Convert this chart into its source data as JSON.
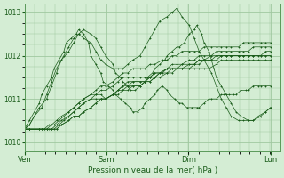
{
  "bg_color": "#d4edd4",
  "plot_bg_color": "#d4edd4",
  "grid_color": "#a0c8a0",
  "line_color": "#1a5c1a",
  "xlabel": "Pression niveau de la mer( hPa )",
  "ylim": [
    1009.8,
    1013.2
  ],
  "yticks": [
    1010,
    1011,
    1012,
    1013
  ],
  "xtick_labels": [
    "Ven",
    "Sam",
    "Dim",
    "Lun"
  ],
  "xtick_positions": [
    0,
    0.333,
    0.667,
    1.0
  ],
  "series": [
    {
      "x": [
        0.0,
        0.02,
        0.04,
        0.06,
        0.08,
        0.1,
        0.12,
        0.14,
        0.16,
        0.18,
        0.2,
        0.22,
        0.24,
        0.27,
        0.29,
        0.31,
        0.33,
        0.36,
        0.38,
        0.4,
        0.42,
        0.44,
        0.47,
        0.49,
        0.51,
        0.53,
        0.55,
        0.58,
        0.6,
        0.62,
        0.64,
        0.67,
        0.69,
        0.71,
        0.73,
        0.75,
        0.78,
        0.8,
        0.82,
        0.84,
        0.87,
        0.89,
        0.91,
        0.93,
        0.95,
        0.98,
        1.0
      ],
      "y": [
        1010.3,
        1010.3,
        1010.3,
        1010.3,
        1010.3,
        1010.4,
        1010.4,
        1010.5,
        1010.6,
        1010.7,
        1010.8,
        1010.9,
        1011.0,
        1011.1,
        1011.1,
        1011.1,
        1011.0,
        1011.1,
        1011.2,
        1011.3,
        1011.4,
        1011.4,
        1011.4,
        1011.4,
        1011.4,
        1011.5,
        1011.6,
        1011.7,
        1011.7,
        1011.7,
        1011.7,
        1011.7,
        1011.7,
        1011.7,
        1011.7,
        1011.7,
        1011.8,
        1011.9,
        1011.9,
        1011.9,
        1011.9,
        1011.9,
        1011.9,
        1011.9,
        1011.9,
        1011.9,
        1011.9
      ]
    },
    {
      "x": [
        0.0,
        0.02,
        0.04,
        0.06,
        0.08,
        0.1,
        0.12,
        0.14,
        0.16,
        0.18,
        0.2,
        0.22,
        0.24,
        0.27,
        0.29,
        0.31,
        0.33,
        0.36,
        0.38,
        0.4,
        0.42,
        0.44,
        0.47,
        0.49,
        0.51,
        0.53,
        0.55,
        0.58,
        0.6,
        0.62,
        0.64,
        0.67,
        0.69,
        0.71,
        0.73,
        0.75,
        0.78,
        0.8,
        0.82,
        0.84,
        0.87,
        0.89,
        0.91,
        0.93,
        0.95,
        0.98,
        1.0
      ],
      "y": [
        1010.3,
        1010.3,
        1010.3,
        1010.3,
        1010.3,
        1010.3,
        1010.3,
        1010.4,
        1010.5,
        1010.6,
        1010.7,
        1010.8,
        1010.9,
        1011.0,
        1011.0,
        1011.0,
        1011.0,
        1011.1,
        1011.2,
        1011.2,
        1011.3,
        1011.3,
        1011.3,
        1011.4,
        1011.5,
        1011.6,
        1011.6,
        1011.7,
        1011.7,
        1011.7,
        1011.8,
        1011.8,
        1011.8,
        1011.9,
        1011.9,
        1011.9,
        1011.9,
        1012.0,
        1012.0,
        1012.0,
        1012.0,
        1012.0,
        1012.0,
        1012.0,
        1012.0,
        1012.0,
        1012.0
      ]
    },
    {
      "x": [
        0.0,
        0.02,
        0.04,
        0.07,
        0.09,
        0.11,
        0.13,
        0.15,
        0.18,
        0.2,
        0.22,
        0.24,
        0.27,
        0.29,
        0.31,
        0.33,
        0.36,
        0.38,
        0.4,
        0.42,
        0.44,
        0.47,
        0.49,
        0.51,
        0.53,
        0.55,
        0.58,
        0.6,
        0.62,
        0.64,
        0.67,
        0.69,
        0.71,
        0.73,
        0.76,
        0.78,
        0.8,
        0.82,
        0.84,
        0.87,
        0.89,
        0.91,
        0.93,
        0.96,
        0.98,
        1.0
      ],
      "y": [
        1010.3,
        1010.3,
        1010.3,
        1010.3,
        1010.3,
        1010.3,
        1010.3,
        1010.4,
        1010.5,
        1010.6,
        1010.6,
        1010.7,
        1010.8,
        1010.9,
        1011.0,
        1011.0,
        1011.1,
        1011.1,
        1011.2,
        1011.2,
        1011.3,
        1011.3,
        1011.4,
        1011.4,
        1011.5,
        1011.5,
        1011.6,
        1011.6,
        1011.7,
        1011.7,
        1011.7,
        1011.8,
        1011.8,
        1011.9,
        1011.9,
        1012.0,
        1012.0,
        1012.0,
        1012.0,
        1012.0,
        1012.0,
        1012.0,
        1012.0,
        1012.0,
        1012.0,
        1012.0
      ]
    },
    {
      "x": [
        0.0,
        0.02,
        0.04,
        0.07,
        0.09,
        0.11,
        0.13,
        0.15,
        0.18,
        0.2,
        0.22,
        0.24,
        0.27,
        0.29,
        0.31,
        0.33,
        0.36,
        0.38,
        0.4,
        0.42,
        0.44,
        0.47,
        0.49,
        0.51,
        0.53,
        0.55,
        0.58,
        0.6,
        0.62,
        0.64,
        0.67,
        0.69,
        0.71,
        0.73,
        0.76,
        0.78,
        0.8,
        0.82,
        0.84,
        0.87,
        0.89,
        0.91,
        0.93,
        0.96,
        0.98,
        1.0
      ],
      "y": [
        1010.3,
        1010.3,
        1010.3,
        1010.3,
        1010.3,
        1010.3,
        1010.3,
        1010.4,
        1010.5,
        1010.6,
        1010.6,
        1010.7,
        1010.8,
        1010.9,
        1011.0,
        1011.0,
        1011.1,
        1011.2,
        1011.3,
        1011.3,
        1011.4,
        1011.4,
        1011.4,
        1011.5,
        1011.5,
        1011.6,
        1011.6,
        1011.7,
        1011.7,
        1011.7,
        1011.8,
        1011.8,
        1011.9,
        1011.9,
        1012.0,
        1012.0,
        1012.0,
        1012.0,
        1012.0,
        1012.0,
        1012.0,
        1012.0,
        1012.0,
        1012.0,
        1012.1,
        1012.1
      ]
    },
    {
      "x": [
        0.0,
        0.02,
        0.04,
        0.06,
        0.09,
        0.11,
        0.13,
        0.15,
        0.18,
        0.2,
        0.22,
        0.24,
        0.27,
        0.29,
        0.31,
        0.33,
        0.36,
        0.38,
        0.4,
        0.42,
        0.44,
        0.47,
        0.49,
        0.51,
        0.53,
        0.56,
        0.58,
        0.6,
        0.62,
        0.64,
        0.67,
        0.69,
        0.71,
        0.73,
        0.76,
        0.78,
        0.8,
        0.82,
        0.84,
        0.87,
        0.89,
        0.91,
        0.93,
        0.96,
        0.98,
        1.0
      ],
      "y": [
        1010.3,
        1010.3,
        1010.3,
        1010.3,
        1010.3,
        1010.3,
        1010.4,
        1010.5,
        1010.6,
        1010.7,
        1010.8,
        1010.9,
        1011.0,
        1011.1,
        1011.2,
        1011.2,
        1011.3,
        1011.4,
        1011.5,
        1011.5,
        1011.5,
        1011.5,
        1011.5,
        1011.5,
        1011.6,
        1011.6,
        1011.7,
        1011.8,
        1011.8,
        1011.8,
        1011.9,
        1011.9,
        1012.0,
        1012.0,
        1012.0,
        1012.1,
        1012.1,
        1012.1,
        1012.1,
        1012.1,
        1012.1,
        1012.1,
        1012.2,
        1012.2,
        1012.2,
        1012.2
      ]
    },
    {
      "x": [
        0.0,
        0.02,
        0.04,
        0.07,
        0.09,
        0.11,
        0.13,
        0.15,
        0.18,
        0.2,
        0.22,
        0.24,
        0.27,
        0.29,
        0.31,
        0.33,
        0.36,
        0.38,
        0.4,
        0.42,
        0.44,
        0.47,
        0.49,
        0.51,
        0.53,
        0.56,
        0.58,
        0.6,
        0.62,
        0.64,
        0.67,
        0.69,
        0.71,
        0.73,
        0.76,
        0.78,
        0.8,
        0.82,
        0.84,
        0.87,
        0.89,
        0.91,
        0.93,
        0.96,
        0.98,
        1.0
      ],
      "y": [
        1010.3,
        1010.3,
        1010.3,
        1010.3,
        1010.3,
        1010.4,
        1010.5,
        1010.6,
        1010.7,
        1010.8,
        1010.9,
        1011.0,
        1011.1,
        1011.2,
        1011.3,
        1011.3,
        1011.4,
        1011.5,
        1011.6,
        1011.6,
        1011.7,
        1011.7,
        1011.7,
        1011.8,
        1011.8,
        1011.9,
        1011.9,
        1012.0,
        1012.0,
        1012.1,
        1012.1,
        1012.1,
        1012.1,
        1012.2,
        1012.2,
        1012.2,
        1012.2,
        1012.2,
        1012.2,
        1012.2,
        1012.3,
        1012.3,
        1012.3,
        1012.3,
        1012.3,
        1012.3
      ]
    },
    {
      "x": [
        0.0,
        0.01,
        0.02,
        0.04,
        0.06,
        0.07,
        0.09,
        0.11,
        0.12,
        0.14,
        0.16,
        0.17,
        0.19,
        0.21,
        0.22,
        0.24,
        0.26,
        0.27,
        0.29,
        0.31,
        0.32,
        0.34,
        0.36,
        0.37,
        0.39,
        0.41,
        0.43,
        0.44,
        0.46,
        0.48,
        0.49,
        0.51,
        0.53,
        0.54,
        0.56,
        0.58,
        0.59,
        0.61,
        0.63,
        0.64,
        0.66,
        0.68,
        0.7,
        0.71,
        0.73,
        0.75,
        0.76,
        0.78,
        0.8,
        0.81,
        0.83,
        0.85,
        0.86,
        0.88,
        0.9,
        0.91,
        0.93,
        0.95,
        0.96,
        0.98,
        1.0
      ],
      "y": [
        1010.3,
        1010.4,
        1010.5,
        1010.7,
        1010.9,
        1011.1,
        1011.3,
        1011.5,
        1011.7,
        1011.9,
        1012.1,
        1012.3,
        1012.4,
        1012.5,
        1012.6,
        1012.5,
        1012.3,
        1012.0,
        1011.8,
        1011.6,
        1011.4,
        1011.3,
        1011.2,
        1011.1,
        1011.0,
        1010.9,
        1010.8,
        1010.7,
        1010.7,
        1010.8,
        1010.9,
        1011.0,
        1011.1,
        1011.2,
        1011.3,
        1011.2,
        1011.1,
        1011.0,
        1010.9,
        1010.9,
        1010.8,
        1010.8,
        1010.8,
        1010.8,
        1010.9,
        1011.0,
        1011.0,
        1011.0,
        1011.1,
        1011.1,
        1011.1,
        1011.1,
        1011.1,
        1011.2,
        1011.2,
        1011.2,
        1011.3,
        1011.3,
        1011.3,
        1011.3,
        1011.3
      ]
    },
    {
      "x": [
        0.0,
        0.02,
        0.04,
        0.06,
        0.09,
        0.11,
        0.13,
        0.15,
        0.18,
        0.2,
        0.22,
        0.24,
        0.27,
        0.29,
        0.31,
        0.33,
        0.36,
        0.37,
        0.39,
        0.4,
        0.42,
        0.43,
        0.45,
        0.47,
        0.49,
        0.5,
        0.52,
        0.53,
        0.55,
        0.57,
        0.58,
        0.6,
        0.62,
        0.63,
        0.65,
        0.67,
        0.69,
        0.7,
        0.72,
        0.73,
        0.75,
        0.76,
        0.77,
        0.78,
        0.8,
        0.82,
        0.84,
        0.86,
        0.88,
        0.91,
        0.93,
        0.95,
        0.98,
        1.0
      ],
      "y": [
        1010.3,
        1010.4,
        1010.6,
        1010.8,
        1011.0,
        1011.3,
        1011.6,
        1011.9,
        1012.1,
        1012.3,
        1012.5,
        1012.6,
        1012.5,
        1012.4,
        1012.2,
        1012.0,
        1011.8,
        1011.6,
        1011.5,
        1011.4,
        1011.3,
        1011.2,
        1011.2,
        1011.3,
        1011.4,
        1011.5,
        1011.6,
        1011.7,
        1011.8,
        1011.9,
        1012.0,
        1012.1,
        1012.2,
        1012.2,
        1012.3,
        1012.5,
        1012.6,
        1012.7,
        1012.5,
        1012.3,
        1012.1,
        1011.9,
        1011.7,
        1011.5,
        1011.3,
        1011.1,
        1010.9,
        1010.7,
        1010.6,
        1010.5,
        1010.5,
        1010.6,
        1010.7,
        1010.8
      ]
    },
    {
      "x": [
        0.0,
        0.02,
        0.04,
        0.07,
        0.09,
        0.11,
        0.13,
        0.16,
        0.18,
        0.2,
        0.22,
        0.24,
        0.27,
        0.29,
        0.31,
        0.33,
        0.36,
        0.38,
        0.4,
        0.42,
        0.44,
        0.47,
        0.49,
        0.51,
        0.53,
        0.55,
        0.58,
        0.6,
        0.62,
        0.64,
        0.67,
        0.69,
        0.71,
        0.73,
        0.76,
        0.78,
        0.8,
        0.82,
        0.84,
        0.87,
        0.89,
        0.91,
        0.93,
        0.96,
        0.98,
        1.0
      ],
      "y": [
        1010.3,
        1010.4,
        1010.6,
        1010.8,
        1011.1,
        1011.4,
        1011.7,
        1012.0,
        1012.2,
        1012.4,
        1012.5,
        1012.4,
        1012.3,
        1012.1,
        1011.9,
        1011.8,
        1011.7,
        1011.7,
        1011.7,
        1011.8,
        1011.9,
        1012.0,
        1012.2,
        1012.4,
        1012.6,
        1012.8,
        1012.9,
        1013.0,
        1013.1,
        1012.9,
        1012.7,
        1012.4,
        1012.1,
        1011.9,
        1011.6,
        1011.3,
        1011.0,
        1010.8,
        1010.6,
        1010.5,
        1010.5,
        1010.5,
        1010.5,
        1010.6,
        1010.7,
        1010.8
      ]
    }
  ]
}
